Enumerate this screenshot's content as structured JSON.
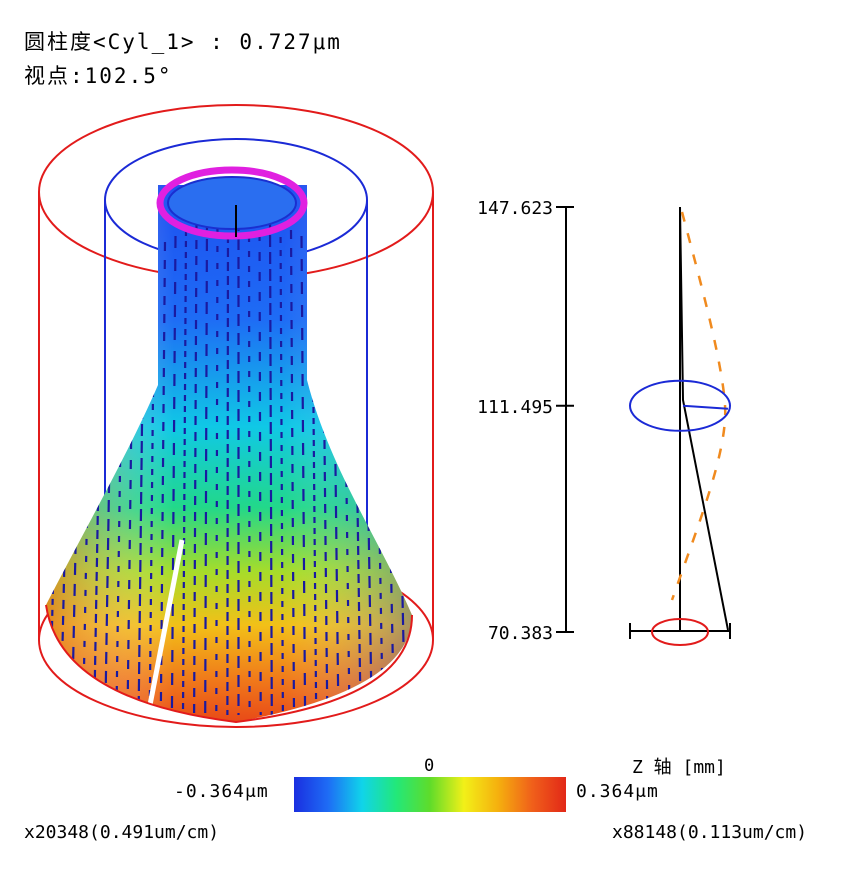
{
  "header": {
    "title_line": "圆柱度<Cyl_1> : 0.727μm",
    "viewpoint_line": "视点:102.5°"
  },
  "legend": {
    "min_label": "-0.364μm",
    "zero_label": "0",
    "max_label": "0.364μm",
    "gradient_stops": [
      "#1a2fe0",
      "#1e6cf5",
      "#10d4ea",
      "#22e87a",
      "#5fdc2a",
      "#f2f018",
      "#f5b00e",
      "#f0601a",
      "#e22818"
    ]
  },
  "footer": {
    "left_scale": "x20348(0.491um/cm)",
    "right_scale": "x88148(0.113um/cm)"
  },
  "colors": {
    "reference_outer": "#e21b1b",
    "reference_inner": "#1b2ad6",
    "top_ring": "#e020e0",
    "profile_dashed": "#f08a1e",
    "axis_line": "#000000"
  },
  "chart_data": [
    {
      "type": "surface-3d",
      "title": "圆柱度<Cyl_1>",
      "cylindricity_um": 0.727,
      "viewpoint_deg": 102.5,
      "deviation_range_um": [
        -0.364,
        0.364
      ],
      "magnification": "x20348",
      "scale_label": "0.491um/cm"
    },
    {
      "type": "line",
      "axis_label": "Z 轴 [mm]",
      "z_ticks_mm": [
        147.623,
        111.495,
        70.383
      ],
      "ylim": [
        70.383,
        147.623
      ],
      "magnification": "x88148",
      "scale_label": "0.113um/cm"
    }
  ]
}
